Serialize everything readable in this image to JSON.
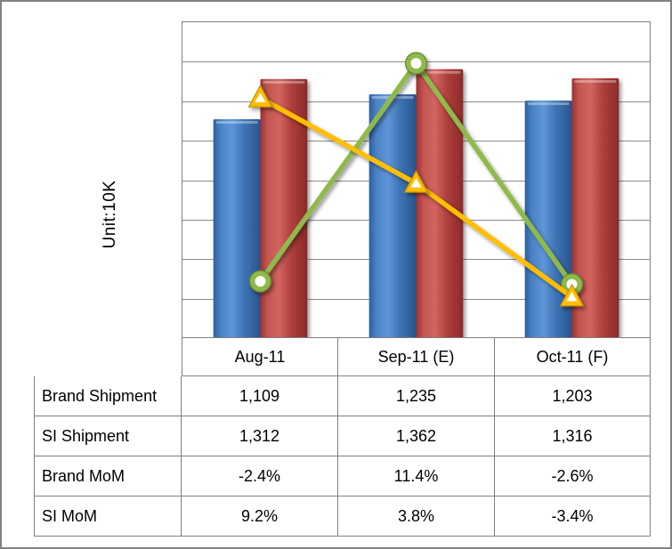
{
  "chart": {
    "unit_label": "Unit:10K"
  },
  "colors": {
    "brand_bar": "#4179BB",
    "si_bar": "#C0504D",
    "brand_mom_line": "#8FBA4C",
    "brand_mom_edge": "#69882F",
    "si_mom_line": "#FFBE00",
    "si_mom_edge": "#C18E00",
    "gridline": "#8C8C8C",
    "border": "#808080"
  },
  "chart_data": {
    "type": "combo-bar-line",
    "title": "",
    "xlabel": "",
    "ylabel": "Unit:10K",
    "categories": [
      "Aug-11",
      "Sep-11 (E)",
      "Oct-11 (F)"
    ],
    "series": [
      {
        "key": "brand-shipment",
        "name": "Brand Shipment",
        "render": "bar",
        "axis": "primary",
        "color": "#4179BB",
        "values": [
          1109,
          1235,
          1203
        ]
      },
      {
        "key": "si-shipment",
        "name": "SI Shipment",
        "render": "bar",
        "axis": "primary",
        "color": "#C0504D",
        "values": [
          1312,
          1362,
          1316
        ]
      },
      {
        "key": "brand-mom",
        "name": "Brand MoM",
        "render": "line",
        "axis": "secondary",
        "marker": "circle",
        "color": "#8FBA4C",
        "edge": "#69882F",
        "values": [
          -2.4,
          11.4,
          -2.6
        ]
      },
      {
        "key": "si-mom",
        "name": "SI MoM",
        "render": "line",
        "axis": "secondary",
        "marker": "triangle",
        "color": "#FFBE00",
        "edge": "#C18E00",
        "values": [
          9.2,
          3.8,
          -3.4
        ]
      }
    ],
    "ylim_primary": [
      0,
      1600
    ],
    "ylim_secondary": [
      -6,
      14
    ],
    "y_divisions": 8,
    "grid": "horizontal",
    "legend": "none"
  },
  "table": {
    "columns": [
      "Aug-11",
      "Sep-11 (E)",
      "Oct-11 (F)"
    ],
    "rows": [
      {
        "label": "Brand Shipment",
        "values": [
          "1,109",
          "1,235",
          "1,203"
        ]
      },
      {
        "label": "SI Shipment",
        "values": [
          "1,312",
          "1,362",
          "1,316"
        ]
      },
      {
        "label": "Brand MoM",
        "values": [
          "-2.4%",
          "11.4%",
          "-2.6%"
        ]
      },
      {
        "label": "SI MoM",
        "values": [
          "9.2%",
          "3.8%",
          "-3.4%"
        ]
      }
    ]
  }
}
